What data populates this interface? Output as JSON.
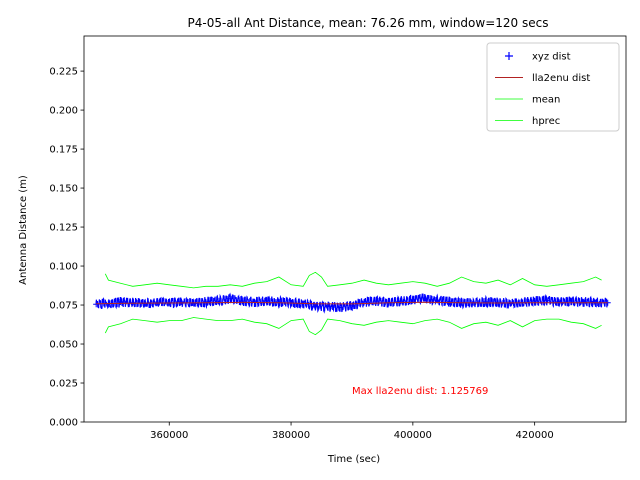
{
  "chart_data": {
    "type": "line",
    "title": "P4-05-all Ant Distance, mean: 76.26 mm, window=120 secs",
    "xlabel": "Time (sec)",
    "ylabel": "Antenna Distance (m)",
    "xlim": [
      346000,
      435000
    ],
    "ylim": [
      0.0,
      0.2475
    ],
    "xticks": [
      360000,
      380000,
      400000,
      420000
    ],
    "xtick_labels": [
      "360000",
      "380000",
      "400000",
      "420000"
    ],
    "yticks": [
      0.0,
      0.025,
      0.05,
      0.075,
      0.1,
      0.125,
      0.15,
      0.175,
      0.2,
      0.225
    ],
    "ytick_labels": [
      "0.000",
      "0.025",
      "0.050",
      "0.075",
      "0.100",
      "0.125",
      "0.150",
      "0.175",
      "0.200",
      "0.225"
    ],
    "legend_position": "top-right",
    "grid": false,
    "annotation": {
      "text": "Max lla2enu dist: 1.125769",
      "x": 390000,
      "y": 0.02,
      "color": "#ff0000"
    },
    "series": [
      {
        "name": "xyz dist",
        "style": "plus-markers",
        "color": "#0000ff",
        "x": [
          348000,
          350000,
          352000,
          354000,
          356000,
          358000,
          360000,
          362000,
          364000,
          366000,
          368000,
          370000,
          372000,
          374000,
          376000,
          378000,
          380000,
          382000,
          384000,
          386000,
          388000,
          390000,
          392000,
          394000,
          396000,
          398000,
          400000,
          402000,
          404000,
          406000,
          408000,
          410000,
          412000,
          414000,
          416000,
          418000,
          420000,
          422000,
          424000,
          426000,
          428000,
          430000,
          432000
        ],
        "values": [
          0.0755,
          0.076,
          0.077,
          0.0765,
          0.076,
          0.0765,
          0.0765,
          0.077,
          0.076,
          0.077,
          0.0775,
          0.079,
          0.0775,
          0.077,
          0.0775,
          0.077,
          0.0765,
          0.076,
          0.074,
          0.074,
          0.0735,
          0.0745,
          0.077,
          0.0775,
          0.0765,
          0.0775,
          0.0785,
          0.0795,
          0.078,
          0.077,
          0.0765,
          0.0765,
          0.077,
          0.0765,
          0.076,
          0.0765,
          0.0775,
          0.078,
          0.077,
          0.0775,
          0.077,
          0.0765,
          0.0765
        ]
      },
      {
        "name": "lla2enu dist",
        "style": "line",
        "color": "#b22222",
        "x": [
          348000,
          354000,
          360000,
          366000,
          372000,
          378000,
          384000,
          390000,
          396000,
          402000,
          408000,
          414000,
          420000,
          426000,
          432000
        ],
        "values": [
          0.0758,
          0.0762,
          0.0763,
          0.0765,
          0.0767,
          0.0764,
          0.0758,
          0.0757,
          0.0764,
          0.0768,
          0.0765,
          0.0763,
          0.0765,
          0.0765,
          0.0764
        ]
      },
      {
        "name": "mean",
        "style": "line",
        "color": "#00ff00",
        "x": [
          349500,
          350000,
          352000,
          354000,
          356000,
          358000,
          360000,
          362000,
          364000,
          366000,
          368000,
          370000,
          372000,
          374000,
          376000,
          378000,
          380000,
          382000,
          383000,
          384000,
          385000,
          386000,
          388000,
          390000,
          392000,
          394000,
          396000,
          398000,
          400000,
          402000,
          404000,
          406000,
          408000,
          410000,
          412000,
          414000,
          416000,
          418000,
          420000,
          422000,
          424000,
          426000,
          428000,
          430000,
          431000
        ],
        "values": [
          0.095,
          0.091,
          0.089,
          0.087,
          0.088,
          0.089,
          0.088,
          0.087,
          0.086,
          0.087,
          0.087,
          0.088,
          0.087,
          0.089,
          0.09,
          0.093,
          0.088,
          0.087,
          0.094,
          0.096,
          0.093,
          0.087,
          0.088,
          0.089,
          0.091,
          0.089,
          0.088,
          0.089,
          0.09,
          0.089,
          0.087,
          0.089,
          0.093,
          0.09,
          0.089,
          0.091,
          0.088,
          0.092,
          0.088,
          0.087,
          0.088,
          0.089,
          0.09,
          0.093,
          0.091
        ]
      },
      {
        "name": "hprec",
        "style": "line",
        "color": "#00ff00",
        "x": [
          349500,
          350000,
          352000,
          354000,
          356000,
          358000,
          360000,
          362000,
          364000,
          366000,
          368000,
          370000,
          372000,
          374000,
          376000,
          378000,
          380000,
          382000,
          383000,
          384000,
          385000,
          386000,
          388000,
          390000,
          392000,
          394000,
          396000,
          398000,
          400000,
          402000,
          404000,
          406000,
          408000,
          410000,
          412000,
          414000,
          416000,
          418000,
          420000,
          422000,
          424000,
          426000,
          428000,
          430000,
          431000
        ],
        "values": [
          0.057,
          0.061,
          0.063,
          0.066,
          0.065,
          0.064,
          0.065,
          0.065,
          0.067,
          0.066,
          0.065,
          0.065,
          0.066,
          0.064,
          0.063,
          0.06,
          0.065,
          0.066,
          0.058,
          0.056,
          0.059,
          0.066,
          0.065,
          0.063,
          0.062,
          0.064,
          0.065,
          0.064,
          0.063,
          0.065,
          0.066,
          0.064,
          0.06,
          0.063,
          0.064,
          0.062,
          0.065,
          0.061,
          0.065,
          0.066,
          0.066,
          0.064,
          0.063,
          0.06,
          0.062
        ]
      }
    ]
  }
}
